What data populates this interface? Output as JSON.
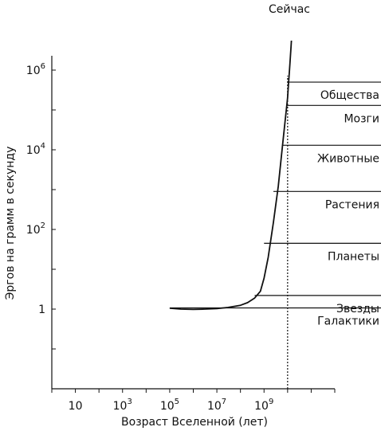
{
  "chart_data": {
    "type": "line",
    "title": "",
    "top_label": "Сейчас",
    "xlabel": "Возраст Вселенной (лет)",
    "ylabel": "Эргов на грамм в секунду",
    "x_scale": "log",
    "y_scale": "log",
    "xlim": [
      1,
      1000000000000.0
    ],
    "ylim": [
      0.01,
      10000000
    ],
    "x_ticks": [
      {
        "value": 10,
        "base": "10",
        "exp": ""
      },
      {
        "value": 1000,
        "base": "10",
        "exp": "3"
      },
      {
        "value": 100000,
        "base": "10",
        "exp": "5"
      },
      {
        "value": 10000000,
        "base": "10",
        "exp": "7"
      },
      {
        "value": 1000000000,
        "base": "10",
        "exp": "9"
      }
    ],
    "y_ticks": [
      {
        "value": 1,
        "base": "1",
        "exp": ""
      },
      {
        "value": 100,
        "base": "10",
        "exp": "2"
      },
      {
        "value": 10000,
        "base": "10",
        "exp": "4"
      },
      {
        "value": 1000000,
        "base": "10",
        "exp": "6"
      }
    ],
    "series": [
      {
        "x": [
          100000,
          300000,
          1000000,
          3000000,
          10000000,
          30000000,
          100000000,
          200000000,
          400000000,
          700000000,
          1000000000,
          1500000000,
          2500000000,
          4000000000,
          6000000000,
          8000000000,
          10000000000,
          11000000000,
          12000000000,
          13000000000,
          13800000000,
          14500000000
        ],
        "y": [
          1.05,
          1.0,
          0.98,
          1.0,
          1.03,
          1.1,
          1.25,
          1.45,
          1.9,
          2.8,
          6.0,
          20,
          150,
          1200,
          12000,
          60000,
          200000,
          500000,
          1000000,
          2000000,
          3500000,
          5500000
        ]
      }
    ],
    "now_x": 10000000000,
    "thresholds": [
      {
        "label": "Галактики",
        "y": 1.07,
        "x_start": 100000
      },
      {
        "label": "Звезды",
        "y": 2.2,
        "x_start": 400000000
      },
      {
        "label": "Планеты",
        "y": 45,
        "x_start": 1000000000
      },
      {
        "label": "Растения",
        "y": 900,
        "x_start": 2500000000
      },
      {
        "label": "Животные",
        "y": 13000,
        "x_start": 6000000000
      },
      {
        "label": "Мозги",
        "y": 130000,
        "x_start": 9000000000
      },
      {
        "label": "Общества",
        "y": 500000,
        "x_start": 10000000000
      }
    ],
    "grid": false,
    "legend": "none"
  }
}
